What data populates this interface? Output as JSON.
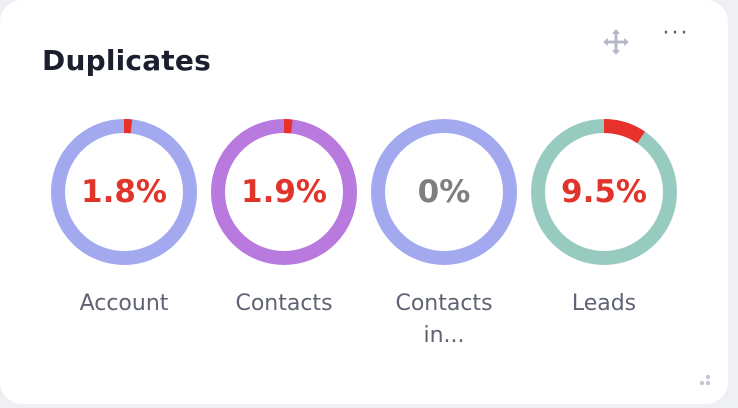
{
  "widget": {
    "title": "Duplicates",
    "move_icon": "move-arrows-icon",
    "more_icon": "more-horizontal-icon",
    "more_label": "···",
    "resize_icon": "resize-grip-icon"
  },
  "donuts": [
    {
      "label": "Account",
      "value_text": "1.8%",
      "fraction": 0.018,
      "ring_color": "#a3a9ee",
      "fill_color": "#e8312a",
      "text_color": "#e1352b"
    },
    {
      "label": "Contacts",
      "value_text": "1.9%",
      "fraction": 0.019,
      "ring_color": "#b87ade",
      "fill_color": "#e8312a",
      "text_color": "#e1352b"
    },
    {
      "label": "Contacts in...",
      "value_text": "0%",
      "fraction": 0.0,
      "ring_color": "#a3a9ee",
      "fill_color": "#e8312a",
      "text_color": "#7f7f7f"
    },
    {
      "label": "Leads",
      "value_text": "9.5%",
      "fraction": 0.095,
      "ring_color": "#98cbc0",
      "fill_color": "#e8312a",
      "text_color": "#e1352b"
    }
  ]
}
